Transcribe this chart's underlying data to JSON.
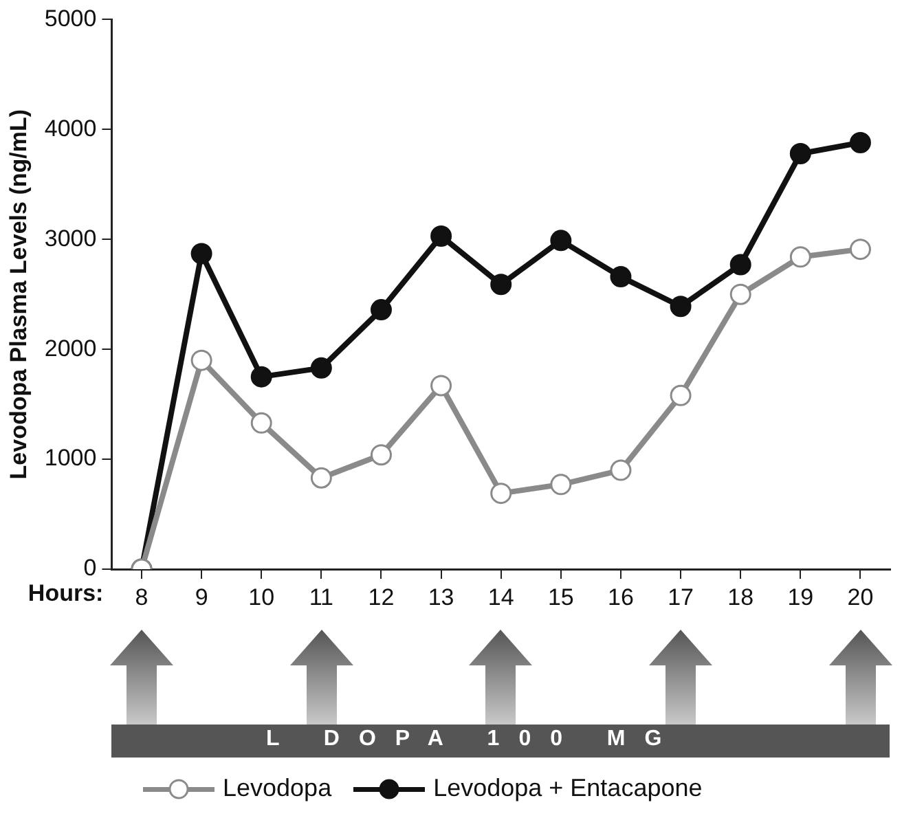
{
  "chart_data": {
    "type": "line",
    "ylabel": "Levodopa Plasma Levels (ng/mL)",
    "xlabel": "Hours:",
    "categories": [
      "8",
      "9",
      "10",
      "11",
      "12",
      "13",
      "14",
      "15",
      "16",
      "17",
      "18",
      "19",
      "20"
    ],
    "ylim": [
      0,
      5000
    ],
    "yticks": [
      0,
      1000,
      2000,
      3000,
      4000,
      5000
    ],
    "grid": false,
    "legend": "bottom",
    "marker": "circle",
    "line_style": "solid",
    "annotations": [
      "L DOPA 100 MG"
    ],
    "series": [
      {
        "name": "Levodopa",
        "color": "#8a8a8a",
        "values": [
          0,
          1900,
          1330,
          830,
          1040,
          1670,
          690,
          770,
          900,
          1580,
          2500,
          2840,
          2910
        ]
      },
      {
        "name": "Levodopa + Entacapone",
        "color": "#111111",
        "values": [
          0,
          2870,
          1750,
          1830,
          2360,
          3030,
          2590,
          2990,
          2660,
          2390,
          2770,
          3780,
          3880
        ]
      }
    ]
  }
}
